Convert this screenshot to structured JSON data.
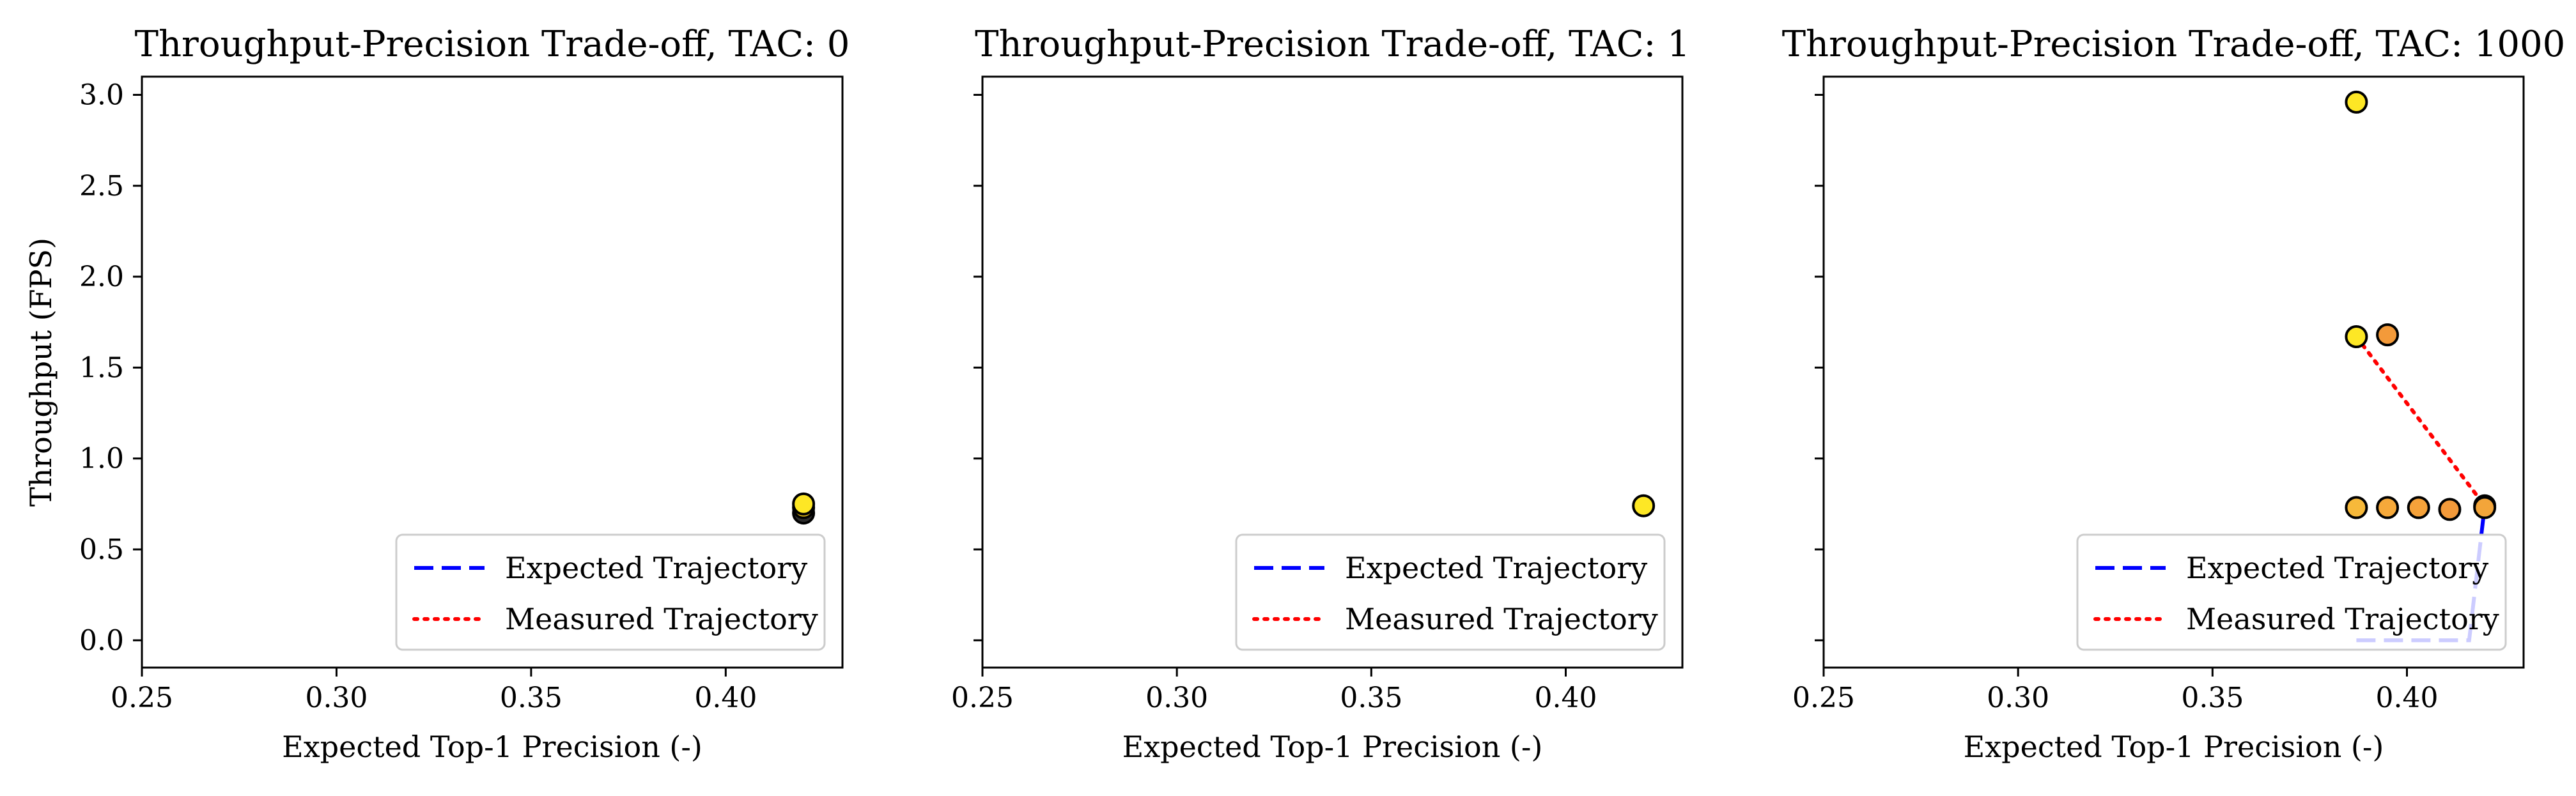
{
  "chart_data": [
    {
      "type": "scatter",
      "title": "Throughput-Precision Trade-off, TAC: 0",
      "xlabel": "Expected Top-1 Precision (-)",
      "ylabel": "Throughput (FPS)",
      "xlim": [
        0.25,
        0.43
      ],
      "ylim": [
        -0.15,
        3.1
      ],
      "xticks": [
        0.25,
        0.3,
        0.35,
        0.4
      ],
      "xtick_labels": [
        "0.25",
        "0.30",
        "0.35",
        "0.40"
      ],
      "yticks": [
        0.0,
        0.5,
        1.0,
        1.5,
        2.0,
        2.5,
        3.0
      ],
      "ytick_labels": [
        "0.0",
        "0.5",
        "1.0",
        "1.5",
        "2.0",
        "2.5",
        "3.0"
      ],
      "show_ytick_labels": true,
      "grid": false,
      "legend_position": "lower right",
      "legend": [
        {
          "label": "Expected Trajectory",
          "color": "#0000ff",
          "style": "dashed"
        },
        {
          "label": "Measured Trajectory",
          "color": "#ff0000",
          "style": "dotted"
        }
      ],
      "series": [],
      "points": [
        {
          "x": 0.42,
          "y": 0.7,
          "color": "#2b2b2b"
        },
        {
          "x": 0.42,
          "y": 0.73,
          "color": "#f0c419"
        },
        {
          "x": 0.42,
          "y": 0.75,
          "color": "#fde725"
        }
      ]
    },
    {
      "type": "scatter",
      "title": "Throughput-Precision Trade-off, TAC: 1",
      "xlabel": "Expected Top-1 Precision (-)",
      "ylabel": "",
      "xlim": [
        0.25,
        0.43
      ],
      "ylim": [
        -0.15,
        3.1
      ],
      "xticks": [
        0.25,
        0.3,
        0.35,
        0.4
      ],
      "xtick_labels": [
        "0.25",
        "0.30",
        "0.35",
        "0.40"
      ],
      "yticks": [
        0.0,
        0.5,
        1.0,
        1.5,
        2.0,
        2.5,
        3.0
      ],
      "ytick_labels": [],
      "show_ytick_labels": false,
      "grid": false,
      "legend_position": "lower right",
      "legend": [
        {
          "label": "Expected Trajectory",
          "color": "#0000ff",
          "style": "dashed"
        },
        {
          "label": "Measured Trajectory",
          "color": "#ff0000",
          "style": "dotted"
        }
      ],
      "series": [],
      "points": [
        {
          "x": 0.42,
          "y": 0.74,
          "color": "#fde725"
        }
      ]
    },
    {
      "type": "scatter",
      "title": "Throughput-Precision Trade-off, TAC: 1000",
      "xlabel": "Expected Top-1 Precision (-)",
      "ylabel": "",
      "xlim": [
        0.25,
        0.43
      ],
      "ylim": [
        -0.15,
        3.1
      ],
      "xticks": [
        0.25,
        0.3,
        0.35,
        0.4
      ],
      "xtick_labels": [
        "0.25",
        "0.30",
        "0.35",
        "0.40"
      ],
      "yticks": [
        0.0,
        0.5,
        1.0,
        1.5,
        2.0,
        2.5,
        3.0
      ],
      "ytick_labels": [],
      "show_ytick_labels": false,
      "grid": false,
      "legend_position": "lower right",
      "legend": [
        {
          "label": "Expected Trajectory",
          "color": "#0000ff",
          "style": "dashed"
        },
        {
          "label": "Measured Trajectory",
          "color": "#ff0000",
          "style": "dotted"
        }
      ],
      "series": [
        {
          "role": "expected",
          "color": "#0000ff",
          "style": "dashed",
          "x": [
            0.387,
            0.416,
            0.42
          ],
          "y": [
            0.0,
            0.0,
            0.74
          ]
        },
        {
          "role": "measured",
          "color": "#ff0000",
          "style": "dotted",
          "x": [
            0.387,
            0.42
          ],
          "y": [
            1.67,
            0.74
          ]
        }
      ],
      "points": [
        {
          "x": 0.387,
          "y": 2.96,
          "color": "#fde725"
        },
        {
          "x": 0.387,
          "y": 1.67,
          "color": "#fde725"
        },
        {
          "x": 0.395,
          "y": 1.68,
          "color": "#f39a3a"
        },
        {
          "x": 0.387,
          "y": 0.73,
          "color": "#f7b93a"
        },
        {
          "x": 0.395,
          "y": 0.73,
          "color": "#f6a93a"
        },
        {
          "x": 0.403,
          "y": 0.73,
          "color": "#f5a23a"
        },
        {
          "x": 0.411,
          "y": 0.72,
          "color": "#f39a3a"
        },
        {
          "x": 0.42,
          "y": 0.74,
          "color": "#f0913a"
        },
        {
          "x": 0.42,
          "y": 0.73,
          "color": "#f3a53a"
        }
      ]
    }
  ]
}
